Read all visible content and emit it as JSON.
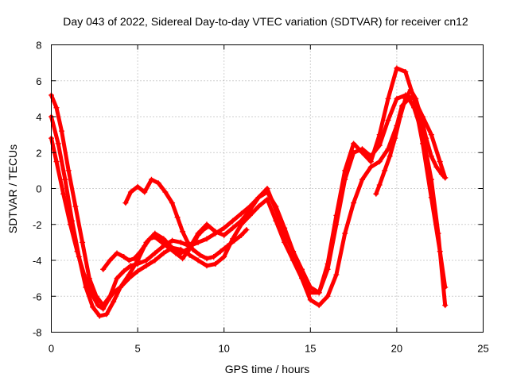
{
  "chart_data": {
    "type": "line",
    "title": "Day 043 of 2022, Sidereal Day-to-day VTEC variation (SDTVAR) for receiver cn12",
    "xlabel": "GPS time / hours",
    "ylabel": "SDTVAR / TECUs",
    "xlim": [
      0,
      25
    ],
    "ylim": [
      -8,
      8
    ],
    "x_ticks": [
      0,
      5,
      10,
      15,
      20,
      25
    ],
    "y_ticks": [
      -8,
      -6,
      -4,
      -2,
      0,
      2,
      4,
      6,
      8
    ],
    "x_tick_labels": [
      "0",
      "5",
      "10",
      "15",
      "20",
      "25"
    ],
    "y_tick_labels": [
      "-8",
      "-6",
      "-4",
      "-2",
      "0",
      "2",
      "4",
      "6",
      "8"
    ],
    "grid": true,
    "marker": "+",
    "series_color": "#ff0000",
    "series": [
      {
        "x": [
          0.0,
          0.3,
          0.6,
          1.0,
          1.4,
          1.8,
          2.2,
          2.6,
          3.0,
          3.4,
          3.8,
          4.2,
          4.6,
          5.0,
          5.5,
          6.0,
          6.5,
          7.0,
          7.5,
          8.0,
          8.5,
          9.0,
          9.5,
          10.0,
          10.5,
          11.0,
          11.5,
          12.0,
          12.5,
          13.0,
          13.5,
          14.0,
          14.5,
          15.0,
          15.5,
          16.0,
          16.5,
          17.0,
          17.5,
          18.0,
          18.5,
          19.0,
          19.5,
          20.0,
          20.5,
          21.0,
          21.5,
          22.0,
          22.5,
          22.8
        ],
        "y": [
          5.2,
          4.5,
          3.2,
          1.0,
          -1.0,
          -3.0,
          -5.0,
          -6.0,
          -6.5,
          -6.0,
          -5.0,
          -4.6,
          -4.3,
          -4.2,
          -4.0,
          -3.6,
          -3.2,
          -2.9,
          -3.0,
          -3.2,
          -3.0,
          -2.8,
          -2.5,
          -2.2,
          -1.8,
          -1.4,
          -1.0,
          -0.5,
          0.0,
          -1.2,
          -2.5,
          -3.5,
          -4.8,
          -5.8,
          -5.8,
          -4.5,
          -2.0,
          0.5,
          2.0,
          2.2,
          1.8,
          2.4,
          3.8,
          5.0,
          5.2,
          5.0,
          4.0,
          3.0,
          1.5,
          0.6
        ]
      },
      {
        "x": [
          0.0,
          0.4,
          0.8,
          1.2,
          1.6,
          2.0,
          2.4,
          2.8,
          3.2,
          3.6,
          4.0,
          4.5,
          5.0,
          5.5,
          6.0,
          6.5,
          7.0,
          7.5,
          8.0,
          8.5,
          9.0,
          9.5,
          10.0,
          10.5,
          11.0,
          11.5,
          12.0,
          12.5,
          13.0,
          13.5,
          14.0,
          14.5,
          15.0,
          15.5,
          16.0,
          16.5,
          17.0,
          17.5,
          18.0,
          18.5,
          19.0,
          19.5,
          20.0,
          20.3,
          20.7,
          21.0,
          21.5,
          22.0,
          22.4,
          22.8
        ],
        "y": [
          4.0,
          2.5,
          0.5,
          -1.8,
          -3.8,
          -5.5,
          -6.6,
          -7.1,
          -7.0,
          -6.3,
          -5.5,
          -5.0,
          -4.6,
          -4.3,
          -4.0,
          -3.6,
          -3.3,
          -3.4,
          -3.7,
          -4.0,
          -4.3,
          -4.2,
          -3.8,
          -2.8,
          -2.0,
          -1.5,
          -1.0,
          -0.6,
          -1.8,
          -3.0,
          -4.0,
          -5.0,
          -6.2,
          -6.5,
          -6.0,
          -4.8,
          -2.5,
          -0.8,
          0.5,
          1.2,
          1.5,
          2.2,
          3.5,
          4.6,
          5.0,
          4.5,
          3.0,
          0.5,
          -2.5,
          -6.5
        ]
      },
      {
        "x": [
          0.0,
          0.3,
          0.7,
          1.1,
          1.5,
          1.9,
          2.3,
          2.7,
          3.0,
          3.3,
          3.6,
          4.0,
          4.5,
          5.0,
          5.5,
          6.0,
          6.5,
          7.0,
          7.5,
          8.0,
          8.5,
          9.0,
          9.5,
          10.0,
          10.5,
          11.0,
          11.5,
          12.0,
          12.5,
          13.0,
          13.5,
          14.0,
          14.5,
          15.0,
          15.5,
          16.0,
          16.5,
          17.0,
          17.5,
          18.0,
          18.5,
          19.0,
          19.5,
          20.0,
          20.5,
          21.0,
          21.5,
          22.0,
          22.5,
          22.8
        ],
        "y": [
          2.8,
          1.5,
          -0.3,
          -2.0,
          -3.5,
          -4.8,
          -5.8,
          -6.5,
          -6.7,
          -6.2,
          -5.8,
          -5.5,
          -4.8,
          -4.0,
          -3.0,
          -2.5,
          -2.8,
          -3.3,
          -3.6,
          -3.3,
          -2.5,
          -2.0,
          -2.4,
          -2.6,
          -2.2,
          -1.8,
          -1.2,
          -0.5,
          -0.2,
          -1.0,
          -2.2,
          -3.5,
          -4.5,
          -5.5,
          -5.8,
          -4.2,
          -1.5,
          1.0,
          2.5,
          2.0,
          1.5,
          3.0,
          5.0,
          6.7,
          6.5,
          5.0,
          2.5,
          -0.5,
          -3.5,
          -5.5
        ]
      },
      {
        "x": [
          3.0,
          3.4,
          3.8,
          4.2,
          4.5,
          4.8,
          5.1,
          5.4,
          5.7,
          6.0,
          6.4,
          6.8,
          7.2,
          7.6,
          7.9,
          8.2,
          8.5,
          8.8,
          9.1
        ],
        "y": [
          -4.5,
          -4.0,
          -3.6,
          -3.8,
          -4.0,
          -3.9,
          -3.6,
          -3.2,
          -2.8,
          -2.7,
          -3.0,
          -3.3,
          -3.6,
          -3.9,
          -3.5,
          -3.1,
          -2.6,
          -2.3,
          -2.1
        ]
      },
      {
        "x": [
          4.3,
          4.6,
          5.0,
          5.4,
          5.8,
          6.2,
          6.6,
          7.0,
          7.3,
          7.6,
          7.9,
          8.2,
          8.6,
          9.0,
          9.4,
          9.8,
          10.2,
          10.6,
          11.0,
          11.3
        ],
        "y": [
          -0.8,
          -0.2,
          0.1,
          -0.2,
          0.5,
          0.3,
          -0.2,
          -0.8,
          -1.6,
          -2.4,
          -3.0,
          -3.4,
          -3.7,
          -3.9,
          -3.8,
          -3.5,
          -3.2,
          -2.9,
          -2.6,
          -2.3
        ]
      },
      {
        "x": [
          18.8,
          19.0,
          19.3,
          19.6,
          19.9,
          20.2,
          20.5,
          20.8,
          21.1,
          21.4,
          21.7,
          22.0,
          22.3,
          22.6,
          22.8
        ],
        "y": [
          -0.3,
          0.2,
          1.0,
          1.8,
          2.8,
          4.0,
          5.0,
          5.5,
          5.0,
          4.0,
          2.8,
          1.8,
          1.2,
          0.8,
          0.6
        ]
      }
    ]
  }
}
